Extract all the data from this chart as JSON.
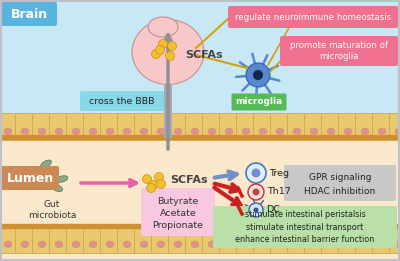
{
  "brain_bg": "#c8e8f5",
  "lumen_bg": "#fae8cc",
  "brain_label": "Brain",
  "lumen_label": "Lumen",
  "brain_label_bg": "#5ab4e0",
  "lumen_label_bg": "#cc8855",
  "cross_bbb_text": "cross the BBB",
  "cross_bbb_bg": "#88d8e8",
  "microglia_label": "microglia",
  "microglia_bg": "#55bb55",
  "regulate_text": "regulate neuroimmune homeostasis",
  "regulate_bg": "#f07090",
  "promote_text": "promote maturation of\nmicroglia",
  "promote_bg": "#f07090",
  "scfas_brain": "SCFAs",
  "scfas_lumen": "SCFAs",
  "gut_microbiota": "Gut\nmicrobiota",
  "butyrate": "Butyrate",
  "acetate": "Acetate",
  "propionate": "Propionate",
  "scfa_box_bg": "#f8c8e0",
  "treg_label": "Treg",
  "th17_label": "Th17",
  "dc_label": "DC",
  "gpr_text": "GPR signaling",
  "hdac_text": "HDAC inhibition",
  "gpr_hdac_bg": "#c8c8c8",
  "stimulate_text": "stimulate intestinal peristalsis\nstimulate intestinal transport\nenhance intestinal barrier function",
  "stimulate_bg": "#b8e0a8",
  "intestinal_cell_color": "#e8c870",
  "intestinal_cell_border": "#c8a040",
  "brain_color": "#f8c8c8",
  "brain_stem_color": "#a8a8b0",
  "arrow_stem_color": "#909098",
  "pink_arrow": "#e860a8",
  "yellow_dot": "#f0c030",
  "yellow_dot_edge": "#c89010",
  "bact_color": "#88aa88",
  "bact_edge": "#507050",
  "microglia_body": "#5888d0",
  "microglia_edge": "#3060a8",
  "microglia_nucleus": "#102848",
  "treg_fill": "#e0eeff",
  "treg_edge": "#4878c0",
  "treg_inner": "#7090d0",
  "th17_fill": "#ffe0e0",
  "th17_edge": "#c03030",
  "th17_inner": "#c04040",
  "dc_fill": "#d8e8f8",
  "dc_edge": "#4060a0",
  "blue_arrow": "#7090c8",
  "red_arrow": "#cc2020",
  "gold_line": "#d4a010",
  "outer_border": "#c0c0c8"
}
